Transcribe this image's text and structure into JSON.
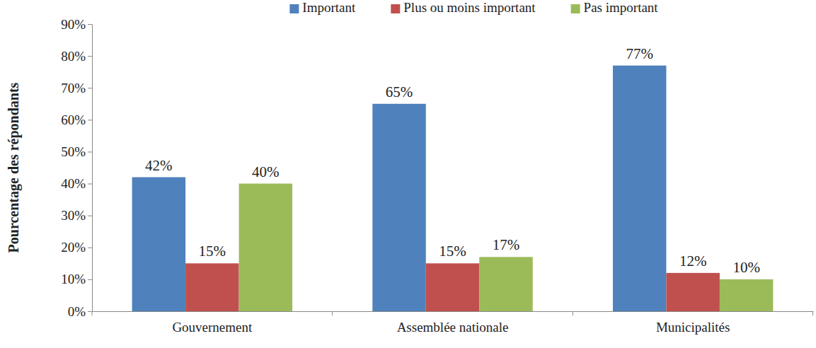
{
  "chart_data": {
    "type": "bar",
    "y_label": "Pourcentage des répondants",
    "categories": [
      "Gouvernement",
      "Assemblée nationale",
      "Municipalités"
    ],
    "series": [
      {
        "name": "Important",
        "color": "#4f81bd",
        "values": [
          42,
          65,
          77
        ],
        "value_labels": [
          "42%",
          "65%",
          "77%"
        ]
      },
      {
        "name": "Plus ou moins important",
        "color": "#c0504d",
        "values": [
          15,
          15,
          12
        ],
        "value_labels": [
          "15%",
          "15%",
          "12%"
        ]
      },
      {
        "name": "Pas important",
        "color": "#9bbb59",
        "values": [
          40,
          17,
          10
        ],
        "value_labels": [
          "40%",
          "17%",
          "10%"
        ]
      }
    ],
    "ylim": [
      0,
      90
    ],
    "yticks": [
      {
        "value": 0,
        "label": "0%"
      },
      {
        "value": 10,
        "label": "10%"
      },
      {
        "value": 20,
        "label": "20%"
      },
      {
        "value": 30,
        "label": "30%"
      },
      {
        "value": 40,
        "label": "40%"
      },
      {
        "value": 50,
        "label": "50%"
      },
      {
        "value": 60,
        "label": "60%"
      },
      {
        "value": 70,
        "label": "70%"
      },
      {
        "value": 80,
        "label": "80%"
      },
      {
        "value": 90,
        "label": "90%"
      }
    ],
    "grid": false,
    "legend": "top",
    "data_labels": true
  }
}
